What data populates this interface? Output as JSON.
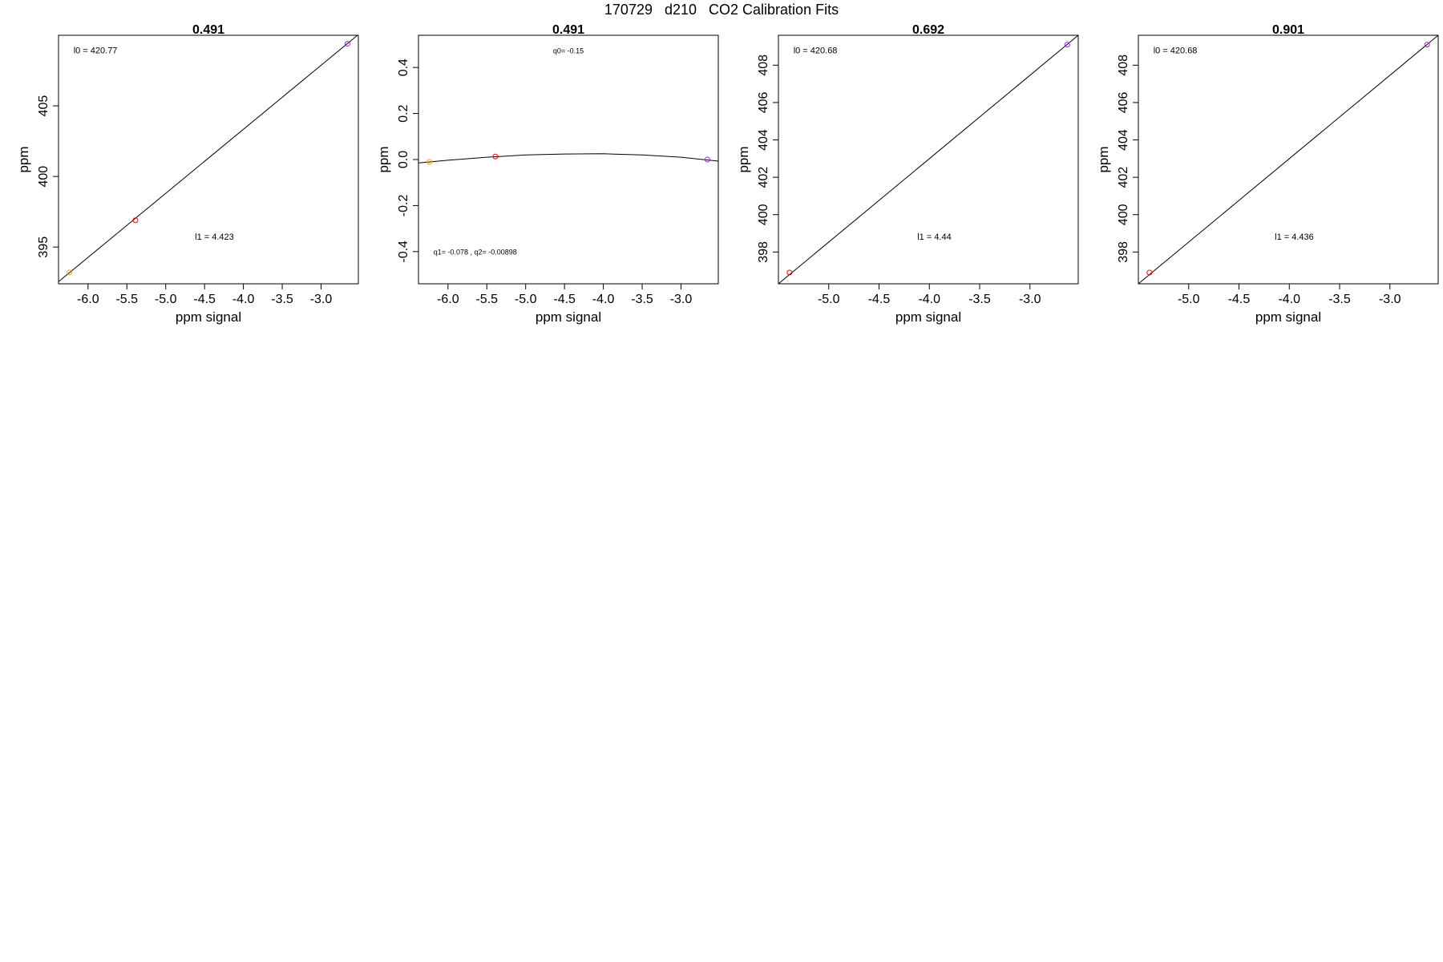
{
  "page": {
    "title": "170729   d210   CO2 Calibration Fits",
    "colors": {
      "axis": "#000000",
      "fit_line": "#000000",
      "point_orange": "#ffa500",
      "point_red": "#ff0000",
      "point_purple": "#a020f0"
    }
  },
  "chart_data": [
    {
      "type": "scatter",
      "title": "0.491",
      "xlabel": "ppm signal",
      "ylabel": "ppm",
      "xlim": [
        -6.38,
        -2.52
      ],
      "ylim": [
        392.4,
        410.0
      ],
      "x_ticks": [
        -6.0,
        -5.5,
        -5.0,
        -4.5,
        -4.0,
        -3.5,
        -3.0
      ],
      "x_tick_labels": [
        "-6.0",
        "-5.5",
        "-5.0",
        "-4.5",
        "-4.0",
        "-3.5",
        "-3.0"
      ],
      "y_ticks": [
        395,
        400,
        405
      ],
      "y_tick_labels": [
        "395",
        "400",
        "405"
      ],
      "points": [
        {
          "x": -6.24,
          "y": 393.2,
          "color": "#ffa500"
        },
        {
          "x": -5.39,
          "y": 396.9,
          "color": "#ff0000"
        },
        {
          "x": -2.66,
          "y": 409.4,
          "color": "#a020f0"
        }
      ],
      "fit_line": {
        "x": [
          -6.38,
          -2.52
        ],
        "y": [
          392.55,
          410.05
        ]
      },
      "annotations": [
        {
          "text": "l0 =  420.77",
          "pos": "top-left"
        },
        {
          "text": "l1 =  4.423",
          "pos": "lower-middle"
        }
      ]
    },
    {
      "type": "scatter",
      "title": "0.491",
      "xlabel": "ppm signal",
      "ylabel": "ppm",
      "xlim": [
        -6.38,
        -2.52
      ],
      "ylim": [
        -0.54,
        0.54
      ],
      "x_ticks": [
        -6.0,
        -5.5,
        -5.0,
        -4.5,
        -4.0,
        -3.5,
        -3.0
      ],
      "x_tick_labels": [
        "-6.0",
        "-5.5",
        "-5.0",
        "-4.5",
        "-4.0",
        "-3.5",
        "-3.0"
      ],
      "y_ticks": [
        -0.4,
        -0.2,
        0.0,
        0.2,
        0.4
      ],
      "y_tick_labels": [
        "-0.4",
        "-0.2",
        "0.0",
        "0.2",
        "0.4"
      ],
      "points": [
        {
          "x": -6.24,
          "y": -0.01,
          "color": "#ffa500"
        },
        {
          "x": -5.39,
          "y": 0.013,
          "color": "#ff0000"
        },
        {
          "x": -2.66,
          "y": 0.0,
          "color": "#a020f0"
        }
      ],
      "fit_line": {
        "x": [
          -6.38,
          -6.0,
          -5.5,
          -5.0,
          -4.5,
          -4.0,
          -3.5,
          -3.0,
          -2.52
        ],
        "y": [
          -0.015,
          -0.003,
          0.01,
          0.02,
          0.024,
          0.025,
          0.02,
          0.01,
          -0.007
        ]
      },
      "annotations": [
        {
          "text": "q0= -0.15",
          "pos": "top-middle"
        },
        {
          "text": "q1= -0.078 , q2= -0.00898",
          "pos": "bottom-left"
        }
      ]
    },
    {
      "type": "scatter",
      "title": "0.692",
      "xlabel": "ppm signal",
      "ylabel": "ppm",
      "xlim": [
        -5.5,
        -2.52
      ],
      "ylim": [
        396.3,
        409.6
      ],
      "x_ticks": [
        -5.0,
        -4.5,
        -4.0,
        -3.5,
        -3.0
      ],
      "x_tick_labels": [
        "-5.0",
        "-4.5",
        "-4.0",
        "-3.5",
        "-3.0"
      ],
      "y_ticks": [
        398,
        400,
        402,
        404,
        406,
        408
      ],
      "y_tick_labels": [
        "398",
        "400",
        "402",
        "404",
        "406",
        "408"
      ],
      "points": [
        {
          "x": -5.39,
          "y": 396.9,
          "color": "#ff0000"
        },
        {
          "x": -2.63,
          "y": 409.1,
          "color": "#a020f0"
        }
      ],
      "fit_line": {
        "x": [
          -5.5,
          -2.52
        ],
        "y": [
          396.3,
          409.6
        ]
      },
      "annotations": [
        {
          "text": "l0 =  420.68",
          "pos": "top-left"
        },
        {
          "text": "l1 =  4.44",
          "pos": "lower-middle"
        }
      ]
    },
    {
      "type": "scatter",
      "title": "0.901",
      "xlabel": "ppm signal",
      "ylabel": "ppm",
      "xlim": [
        -5.5,
        -2.52
      ],
      "ylim": [
        396.3,
        409.6
      ],
      "x_ticks": [
        -5.0,
        -4.5,
        -4.0,
        -3.5,
        -3.0
      ],
      "x_tick_labels": [
        "-5.0",
        "-4.5",
        "-4.0",
        "-3.5",
        "-3.0"
      ],
      "y_ticks": [
        398,
        400,
        402,
        404,
        406,
        408
      ],
      "y_tick_labels": [
        "398",
        "400",
        "402",
        "404",
        "406",
        "408"
      ],
      "points": [
        {
          "x": -5.39,
          "y": 396.9,
          "color": "#ff0000"
        },
        {
          "x": -2.63,
          "y": 409.1,
          "color": "#a020f0"
        }
      ],
      "fit_line": {
        "x": [
          -5.5,
          -2.52
        ],
        "y": [
          396.3,
          409.6
        ]
      },
      "annotations": [
        {
          "text": "l0 =  420.68",
          "pos": "top-left"
        },
        {
          "text": "l1 =  4.436",
          "pos": "lower-middle"
        }
      ]
    }
  ]
}
